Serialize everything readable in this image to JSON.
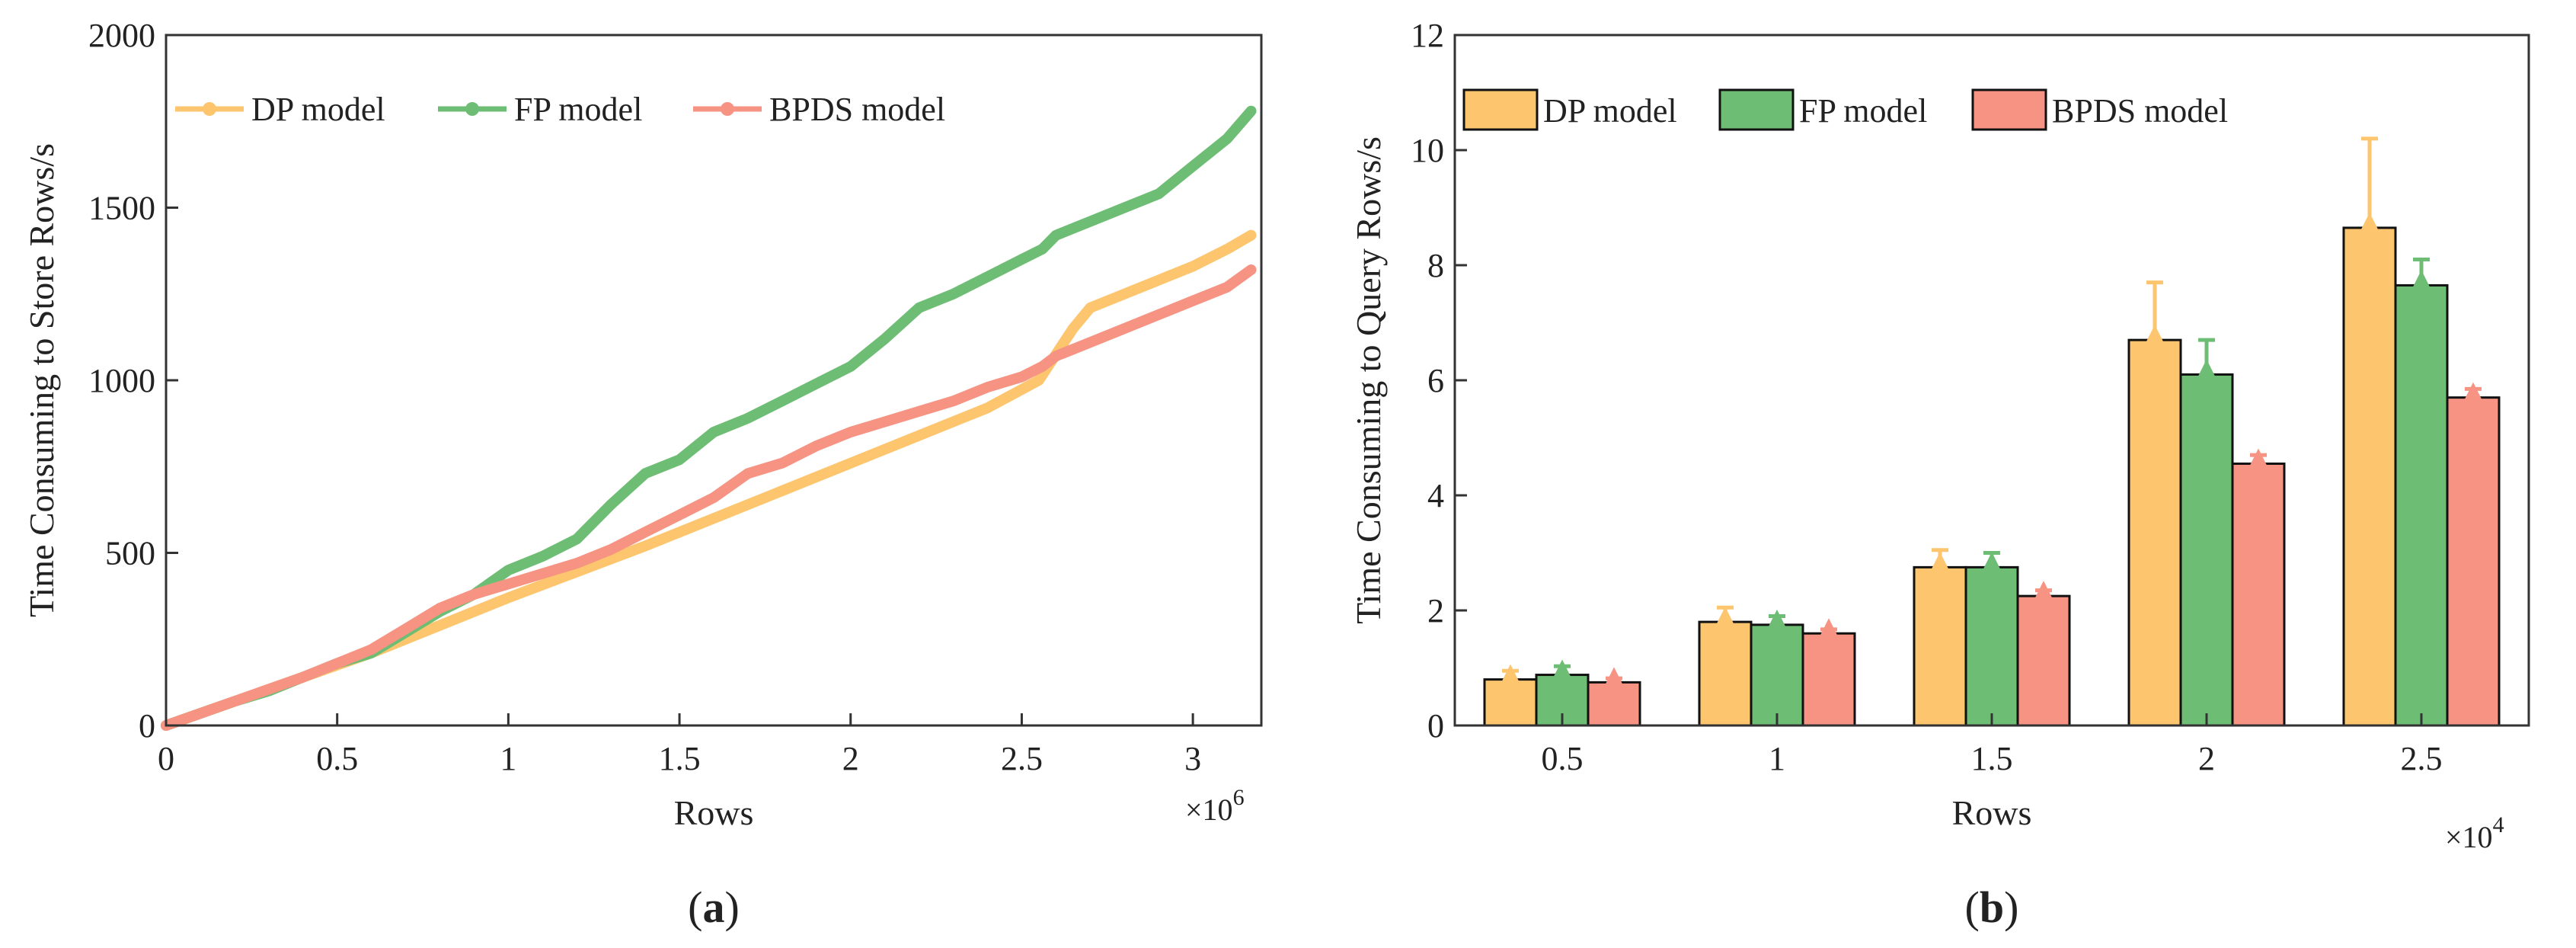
{
  "colors": {
    "dp": "#fcc56e",
    "fp": "#6ebd74",
    "bpds": "#f69383",
    "axis": "#333333"
  },
  "chart_data": [
    {
      "panel": "(a)",
      "panel_letter": "a",
      "type": "line",
      "xlabel": "Rows",
      "ylabel": "Time Consuming to Store Rows/s",
      "x_multiplier_base": "×10",
      "x_multiplier_exp": "6",
      "xlim": [
        0,
        3.2
      ],
      "ylim": [
        0,
        2000
      ],
      "xticks": [
        0,
        0.5,
        1,
        1.5,
        2,
        2.5,
        3
      ],
      "xtick_labels": [
        "0",
        "0.5",
        "1",
        "1.5",
        "2",
        "2.5",
        "3"
      ],
      "yticks": [
        0,
        500,
        1000,
        1500,
        2000
      ],
      "ytick_labels": [
        "0",
        "500",
        "1000",
        "1500",
        "2000"
      ],
      "legend_position": "top-left",
      "series": [
        {
          "key": "dp",
          "name": "DP model",
          "x": [
            0,
            0.2,
            0.4,
            0.6,
            0.8,
            1.0,
            1.2,
            1.4,
            1.6,
            1.8,
            2.0,
            2.2,
            2.4,
            2.55,
            2.65,
            2.7,
            2.8,
            2.9,
            3.0,
            3.1,
            3.17
          ],
          "y": [
            0,
            70,
            140,
            210,
            290,
            370,
            445,
            520,
            600,
            680,
            760,
            840,
            920,
            1000,
            1150,
            1210,
            1250,
            1290,
            1330,
            1380,
            1420
          ]
        },
        {
          "key": "fp",
          "name": "FP model",
          "x": [
            0,
            0.2,
            0.3,
            0.4,
            0.5,
            0.6,
            0.7,
            0.8,
            0.9,
            1.0,
            1.1,
            1.2,
            1.3,
            1.4,
            1.5,
            1.6,
            1.7,
            1.8,
            1.9,
            2.0,
            2.1,
            2.2,
            2.3,
            2.4,
            2.5,
            2.56,
            2.6,
            2.7,
            2.8,
            2.9,
            3.0,
            3.1,
            3.17
          ],
          "y": [
            0,
            70,
            100,
            140,
            180,
            210,
            270,
            330,
            380,
            450,
            490,
            540,
            640,
            730,
            770,
            850,
            890,
            940,
            990,
            1040,
            1120,
            1210,
            1250,
            1300,
            1350,
            1380,
            1420,
            1460,
            1500,
            1540,
            1620,
            1700,
            1780
          ]
        },
        {
          "key": "bpds",
          "name": "BPDS model",
          "x": [
            0,
            0.2,
            0.4,
            0.5,
            0.6,
            0.7,
            0.8,
            0.9,
            1.0,
            1.1,
            1.2,
            1.3,
            1.4,
            1.5,
            1.6,
            1.7,
            1.8,
            1.9,
            2.0,
            2.1,
            2.2,
            2.3,
            2.4,
            2.5,
            2.56,
            2.6,
            2.7,
            2.8,
            2.9,
            3.0,
            3.1,
            3.17
          ],
          "y": [
            0,
            70,
            140,
            180,
            220,
            280,
            340,
            380,
            410,
            440,
            470,
            510,
            560,
            610,
            660,
            730,
            760,
            810,
            850,
            880,
            910,
            940,
            980,
            1010,
            1040,
            1070,
            1110,
            1150,
            1190,
            1230,
            1270,
            1320
          ]
        }
      ]
    },
    {
      "panel": "(b)",
      "panel_letter": "b",
      "type": "bar",
      "xlabel": "Rows",
      "ylabel": "Time Consuming to Query Rows/s",
      "x_multiplier_base": "×10",
      "x_multiplier_exp": "4",
      "categories": [
        "0.5",
        "1",
        "1.5",
        "2",
        "2.5"
      ],
      "ylim": [
        0,
        12
      ],
      "yticks": [
        0,
        2,
        4,
        6,
        8,
        10,
        12
      ],
      "ytick_labels": [
        "0",
        "2",
        "4",
        "6",
        "8",
        "10",
        "12"
      ],
      "legend_position": "top",
      "series": [
        {
          "key": "dp",
          "name": "DP model",
          "values": [
            0.8,
            1.8,
            2.75,
            6.7,
            8.65
          ],
          "errors": [
            0.15,
            0.25,
            0.3,
            1.0,
            1.55
          ]
        },
        {
          "key": "fp",
          "name": "FP model",
          "values": [
            0.88,
            1.75,
            2.75,
            6.1,
            7.65
          ],
          "errors": [
            0.15,
            0.15,
            0.25,
            0.6,
            0.45
          ]
        },
        {
          "key": "bpds",
          "name": "BPDS model",
          "values": [
            0.75,
            1.6,
            2.25,
            4.55,
            5.7
          ],
          "errors": [
            0.07,
            0.07,
            0.1,
            0.15,
            0.15
          ]
        }
      ]
    }
  ]
}
